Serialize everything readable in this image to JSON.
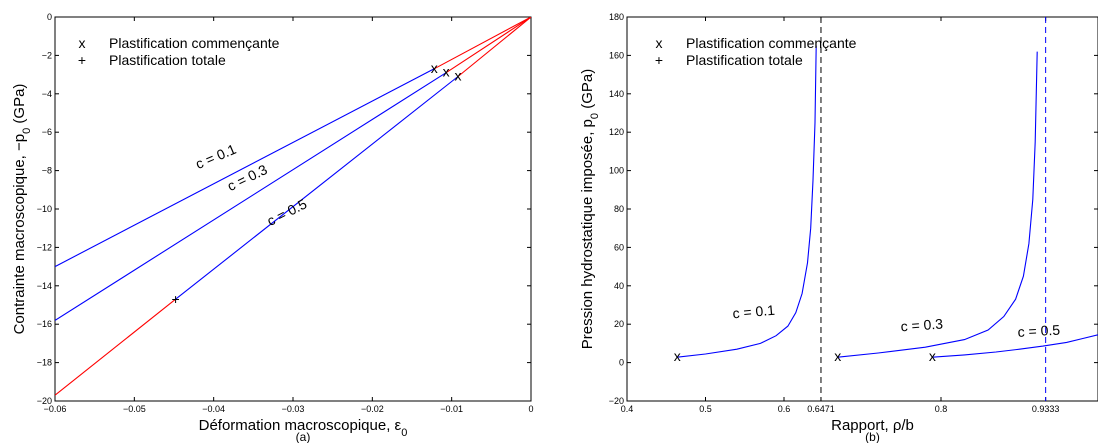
{
  "chart_data": [
    {
      "type": "line",
      "panel_label": "(a)",
      "xlabel": "Déformation macroscopique, ε",
      "xlabel_sub": "0",
      "ylabel": "Contrainte macroscopique, −p",
      "ylabel_sub": "0",
      "ylabel_unit": " (GPa)",
      "xlim": [
        -0.06,
        0
      ],
      "ylim": [
        -20,
        0
      ],
      "xticks": [
        -0.06,
        -0.05,
        -0.04,
        -0.03,
        -0.02,
        -0.01,
        0
      ],
      "xtick_labels": [
        "−0.06",
        "−0.05",
        "−0.04",
        "−0.03",
        "−0.02",
        "−0.01",
        "0"
      ],
      "yticks": [
        -20,
        -18,
        -16,
        -14,
        -12,
        -10,
        -8,
        -6,
        -4,
        -2,
        0
      ],
      "ytick_labels": [
        "−20",
        "−18",
        "−16",
        "−14",
        "−12",
        "−10",
        "−8",
        "−6",
        "−4",
        "−2",
        "0"
      ],
      "legend": {
        "placement": "top-left",
        "entries": [
          {
            "marker": "x",
            "label": "Plastification commençante"
          },
          {
            "marker": "+",
            "label": "Plastification totale"
          }
        ]
      },
      "series": [
        {
          "name": "c = 0.1",
          "color": "#0000ff",
          "x": [
            -0.06,
            -0.0122
          ],
          "y": [
            -13.0,
            -2.7
          ]
        },
        {
          "name": "c = 0.3",
          "color": "#0000ff",
          "x": [
            -0.06,
            -0.0107
          ],
          "y": [
            -15.8,
            -2.9
          ]
        },
        {
          "name": "c = 0.5",
          "color": "#0000ff",
          "x": [
            -0.0448,
            -0.0092
          ],
          "y": [
            -14.7,
            -3.1
          ]
        },
        {
          "name": "",
          "color": "#ff0000",
          "x": [
            0,
            -0.0122
          ],
          "y": [
            0,
            -2.7
          ]
        },
        {
          "name": "",
          "color": "#ff0000",
          "x": [
            0,
            -0.0107
          ],
          "y": [
            0,
            -2.9
          ]
        },
        {
          "name": "",
          "color": "#ff0000",
          "x": [
            0,
            -0.0092
          ],
          "y": [
            0,
            -3.1
          ]
        },
        {
          "name": "",
          "color": "#ff0000",
          "x": [
            -0.0448,
            -0.06
          ],
          "y": [
            -14.7,
            -19.7
          ]
        }
      ],
      "markers_x": [
        [
          -0.0122,
          -2.7
        ],
        [
          -0.0107,
          -2.9
        ],
        [
          -0.0092,
          -3.1
        ]
      ],
      "markers_plus": [
        [
          -0.0448,
          -14.7
        ]
      ],
      "annotations": [
        {
          "text": "c = 0.1",
          "x": -0.0395,
          "y": -7.5,
          "angle": -23
        },
        {
          "text": "c = 0.3",
          "x": -0.0355,
          "y": -8.6,
          "angle": -26
        },
        {
          "text": "c = 0.5",
          "x": -0.0305,
          "y": -10.4,
          "angle": -27
        }
      ]
    },
    {
      "type": "line",
      "panel_label": "(b)",
      "xlabel": "Rapport, ρ/b",
      "ylabel": "Pression hydrostatique imposée, p",
      "ylabel_sub": "0",
      "ylabel_unit": " (GPa)",
      "xlim": [
        0.4,
        1.0
      ],
      "ylim": [
        -20,
        180
      ],
      "xticks": [
        0.4,
        0.5,
        0.6,
        0.6471,
        0.8,
        0.9333
      ],
      "xtick_labels": [
        "0.4",
        "0.5",
        "0.6",
        "0.6471",
        "0.8",
        "0.9333"
      ],
      "yticks": [
        -20,
        0,
        20,
        40,
        60,
        80,
        100,
        120,
        140,
        160,
        180
      ],
      "ytick_labels": [
        "−20",
        "0",
        "20",
        "40",
        "60",
        "80",
        "100",
        "120",
        "140",
        "160",
        "180"
      ],
      "legend": {
        "placement": "top-left",
        "entries": [
          {
            "marker": "x",
            "label": "Plastification commençante"
          },
          {
            "marker": "+",
            "label": "Plastification totale"
          }
        ]
      },
      "asymptotes": [
        {
          "x": 0.6471,
          "color": "#000000"
        },
        {
          "x": 0.9333,
          "color": "#0000ff"
        }
      ],
      "series": [
        {
          "name": "c = 0.1",
          "color": "#0000ff",
          "x": [
            0.464,
            0.5,
            0.54,
            0.57,
            0.59,
            0.605,
            0.615,
            0.623,
            0.63,
            0.634,
            0.637,
            0.6395,
            0.641
          ],
          "y": [
            2.8,
            4.5,
            7,
            10,
            14,
            19,
            26,
            36,
            52,
            70,
            95,
            125,
            165
          ]
        },
        {
          "name": "c = 0.3",
          "color": "#0000ff",
          "x": [
            0.6685,
            0.72,
            0.78,
            0.83,
            0.86,
            0.88,
            0.895,
            0.905,
            0.912,
            0.917,
            0.92,
            0.9225
          ],
          "y": [
            2.8,
            5,
            8,
            12,
            17,
            24,
            33,
            45,
            62,
            85,
            115,
            162
          ]
        },
        {
          "name": "c = 0.5",
          "color": "#0000ff",
          "x": [
            0.789,
            0.83,
            0.87,
            0.9,
            0.93,
            0.96,
            0.98,
            1.0
          ],
          "y": [
            2.8,
            4,
            5.5,
            7,
            8.6,
            10.5,
            12.5,
            14.5
          ]
        }
      ],
      "markers_x": [
        [
          0.464,
          2.8
        ],
        [
          0.6685,
          2.8
        ],
        [
          0.789,
          2.8
        ]
      ],
      "markers_plus": [],
      "annotations": [
        {
          "text": "c = 0.1",
          "x": 0.562,
          "y": 24,
          "angle": -5
        },
        {
          "text": "c = 0.3",
          "x": 0.776,
          "y": 17,
          "angle": -4
        },
        {
          "text": "c = 0.5",
          "x": 0.925,
          "y": 14,
          "angle": -3
        }
      ]
    }
  ]
}
